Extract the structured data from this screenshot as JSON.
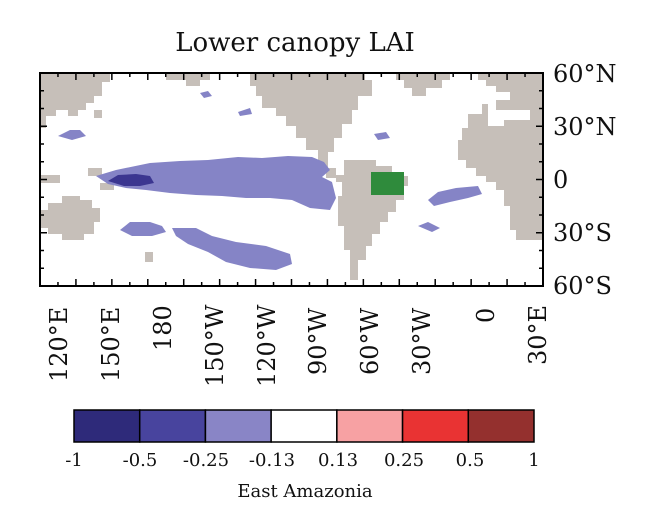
{
  "title": "Lower canopy LAI",
  "map": {
    "lat_labels": [
      "60°N",
      "30°N",
      "0",
      "30°S",
      "60°S"
    ],
    "lon_labels": [
      "120°E",
      "150°E",
      "180",
      "150°W",
      "120°W",
      "90°W",
      "60°W",
      "30°W",
      "0",
      "30°E"
    ],
    "colors": {
      "land": "#c6bfb9",
      "anomaly_light": "#8584c6",
      "anomaly_dark": "#3b3690",
      "region_box": "#2f8b3c",
      "frame": "#000000"
    },
    "highlighted_region": "East Amazonia"
  },
  "colorbar": {
    "bins": [
      {
        "color": "#2e2a7a"
      },
      {
        "color": "#48449e"
      },
      {
        "color": "#8985c6"
      },
      {
        "color": "#ffffff"
      },
      {
        "color": "#f7a1a3"
      },
      {
        "color": "#e93333"
      },
      {
        "color": "#94302e"
      }
    ],
    "labels": [
      "-1",
      "-0.5",
      "-0.25",
      "-0.13",
      "0.13",
      "0.25",
      "0.5",
      "1"
    ],
    "title": "East Amazonia"
  }
}
